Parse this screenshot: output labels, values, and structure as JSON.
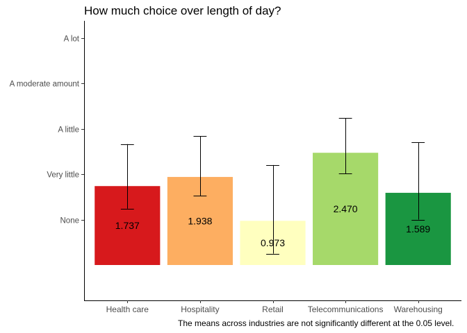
{
  "chart_data": {
    "type": "bar",
    "title": "How much choice over length of day?",
    "caption": "The means across industries are not significantly different at the 0.05 level.",
    "xlabel": "",
    "ylabel": "",
    "categories": [
      "Health care",
      "Hospitality",
      "Retail",
      "Telecommunications",
      "Warehousing"
    ],
    "values": [
      1.737,
      1.938,
      0.973,
      2.47,
      1.589
    ],
    "value_labels": [
      "1.737",
      "1.938",
      "0.973",
      "2.470",
      "1.589"
    ],
    "error_low": [
      1.24,
      1.52,
      0.25,
      2.01,
      1.0
    ],
    "error_high": [
      2.66,
      2.84,
      2.2,
      3.23,
      2.7
    ],
    "colors": [
      "#d7191c",
      "#fdae61",
      "#ffffbf",
      "#a6d96a",
      "#1a9641"
    ],
    "y_ticks": [
      {
        "value": 1,
        "label": "None"
      },
      {
        "value": 2,
        "label": "Very little"
      },
      {
        "value": 3,
        "label": "A little"
      },
      {
        "value": 4,
        "label": "A moderate amount"
      },
      {
        "value": 5,
        "label": "A lot"
      }
    ],
    "ylim": [
      0.0,
      5.65
    ],
    "baseline": 0,
    "legend": "none",
    "grid": false
  }
}
